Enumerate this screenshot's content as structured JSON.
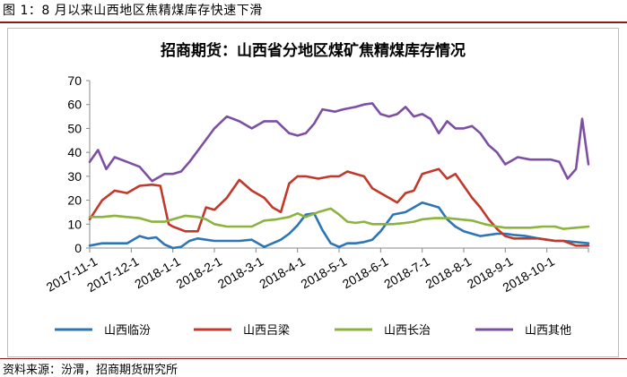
{
  "figure_caption": "图 1：8 月以来山西地区焦精煤库存快速下滑",
  "source_note": "资料来源：汾渭，招商期货研究所",
  "chart_data": {
    "type": "line",
    "title": "招商期货：山西省分地区煤矿焦精煤库存情况",
    "xlabel": "",
    "ylabel": "",
    "ylim": [
      0,
      70
    ],
    "yticks": [
      0,
      10,
      20,
      30,
      40,
      50,
      60,
      70
    ],
    "grid": false,
    "legend_position": "bottom",
    "x_tick_labels": [
      "2017-11-1",
      "2017-12-1",
      "2018-1-1",
      "2018-2-1",
      "2018-3-1",
      "2018-4-1",
      "2018-5-1",
      "2018-6-1",
      "2018-7-1",
      "2018-8-1",
      "2018-9-1",
      "2018-10-1"
    ],
    "x_tick_count": 12,
    "x_range": [
      0,
      12
    ],
    "series": [
      {
        "name": "山西临汾",
        "color": "#2e75b6",
        "x": [
          0,
          0.3,
          0.6,
          0.9,
          1.2,
          1.4,
          1.6,
          1.8,
          2.0,
          2.2,
          2.4,
          2.6,
          2.8,
          3.0,
          3.3,
          3.6,
          3.9,
          4.2,
          4.4,
          4.6,
          4.8,
          5.0,
          5.2,
          5.4,
          5.6,
          5.8,
          6.0,
          6.2,
          6.4,
          6.6,
          6.8,
          7.0,
          7.3,
          7.6,
          7.8,
          8.0,
          8.2,
          8.4,
          8.6,
          8.8,
          9.0,
          9.2,
          9.4,
          9.6,
          9.8,
          10.0,
          10.2,
          10.5,
          10.8,
          11.0,
          11.2,
          11.4,
          11.7,
          12.0
        ],
        "values": [
          1,
          2,
          2,
          2,
          5,
          4,
          4.5,
          1.5,
          0,
          0.5,
          3,
          4,
          3.5,
          3,
          3,
          3,
          3.5,
          0.5,
          2,
          3.5,
          6,
          9.5,
          14,
          14.5,
          7.5,
          2,
          0.5,
          2,
          2,
          2.5,
          3.5,
          7,
          14,
          15,
          17,
          19,
          18,
          17,
          12,
          9,
          7,
          6,
          5,
          5.5,
          6,
          6,
          5.5,
          5,
          4,
          3.5,
          3,
          3,
          2.5,
          2
        ]
      },
      {
        "name": "山西吕梁",
        "color": "#c0392b",
        "x": [
          0,
          0.3,
          0.6,
          0.9,
          1.2,
          1.5,
          1.7,
          1.9,
          2.0,
          2.3,
          2.6,
          2.8,
          3.0,
          3.3,
          3.6,
          3.9,
          4.2,
          4.4,
          4.6,
          4.8,
          5.0,
          5.2,
          5.5,
          5.8,
          6.0,
          6.2,
          6.4,
          6.6,
          6.8,
          7.0,
          7.2,
          7.4,
          7.6,
          7.8,
          8.0,
          8.2,
          8.4,
          8.6,
          8.8,
          9.0,
          9.2,
          9.4,
          9.6,
          9.8,
          10.0,
          10.2,
          10.5,
          10.8,
          11.0,
          11.2,
          11.4,
          11.7,
          12.0
        ],
        "values": [
          12,
          20,
          24,
          23,
          26,
          26.5,
          26,
          10,
          9,
          7,
          7,
          17,
          16,
          21,
          28.5,
          24,
          21,
          17,
          15,
          27,
          30,
          30,
          29,
          30,
          30,
          32,
          31,
          30,
          25,
          23,
          21,
          19,
          23,
          24,
          31,
          32,
          33,
          29,
          31,
          26,
          21,
          17,
          12,
          8,
          5,
          4,
          4,
          4,
          3.5,
          3,
          3,
          1,
          1
        ]
      },
      {
        "name": "山西长治",
        "color": "#8cb33e",
        "x": [
          0,
          0.3,
          0.6,
          0.9,
          1.2,
          1.5,
          1.8,
          2.0,
          2.3,
          2.6,
          2.8,
          3.0,
          3.3,
          3.6,
          3.9,
          4.2,
          4.5,
          4.8,
          5.0,
          5.2,
          5.5,
          5.8,
          6.0,
          6.2,
          6.4,
          6.6,
          6.8,
          7.0,
          7.3,
          7.6,
          7.8,
          8.0,
          8.3,
          8.6,
          8.9,
          9.2,
          9.5,
          9.8,
          10.0,
          10.3,
          10.6,
          10.9,
          11.2,
          11.4,
          11.7,
          12.0
        ],
        "values": [
          13,
          13,
          13.5,
          13,
          12.5,
          11,
          11,
          12,
          13.5,
          13,
          12,
          10,
          9,
          9,
          9,
          11.5,
          12,
          13,
          14.5,
          13,
          15,
          16.5,
          14,
          11,
          10.5,
          11,
          10,
          10,
          10,
          10.5,
          11,
          12,
          12.5,
          12.5,
          12,
          11.5,
          10,
          9,
          8.5,
          8.5,
          8.5,
          9,
          9,
          8,
          8.5,
          9
        ]
      },
      {
        "name": "山西其他",
        "color": "#7d4fa3",
        "x": [
          0,
          0.2,
          0.4,
          0.6,
          0.9,
          1.2,
          1.5,
          1.8,
          2.0,
          2.2,
          2.4,
          2.7,
          3.0,
          3.3,
          3.6,
          3.9,
          4.2,
          4.5,
          4.8,
          5.0,
          5.2,
          5.4,
          5.6,
          5.9,
          6.1,
          6.4,
          6.6,
          6.8,
          7.0,
          7.2,
          7.4,
          7.6,
          7.8,
          8.0,
          8.2,
          8.4,
          8.6,
          8.8,
          9.0,
          9.2,
          9.4,
          9.6,
          9.8,
          10.0,
          10.3,
          10.6,
          10.9,
          11.1,
          11.3,
          11.5,
          11.7,
          11.85,
          12.0
        ],
        "values": [
          36,
          41,
          33,
          38,
          36,
          34,
          28,
          31,
          31,
          32,
          36,
          43,
          50,
          55,
          53,
          50,
          53,
          53,
          48,
          47,
          48,
          52,
          58,
          57,
          58,
          59,
          60,
          60.5,
          56,
          55,
          56,
          59,
          55,
          56,
          54,
          48,
          53,
          50,
          50,
          51,
          48,
          43,
          40,
          35,
          38,
          37,
          37,
          37,
          36,
          29,
          33,
          54,
          35
        ]
      }
    ]
  }
}
